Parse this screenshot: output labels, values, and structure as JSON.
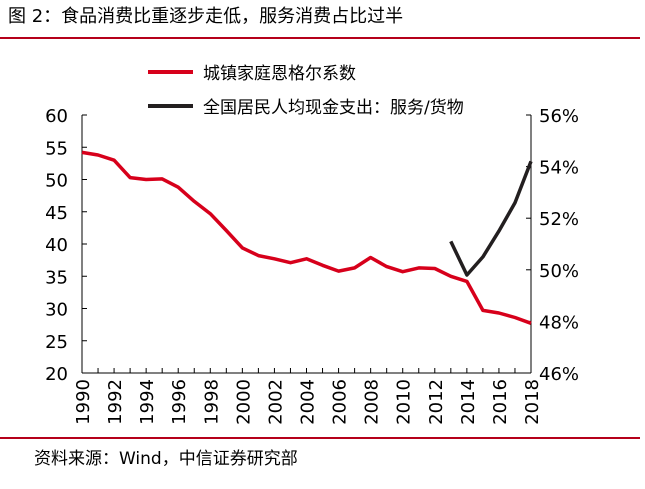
{
  "chart_data": {
    "type": "line",
    "title": "图 2：食品消费比重逐步走低，服务消费占比过半",
    "source": "资料来源：Wind，中信证券研究部",
    "x": [
      1990,
      1991,
      1992,
      1993,
      1994,
      1995,
      1996,
      1997,
      1998,
      1999,
      2000,
      2001,
      2002,
      2003,
      2004,
      2005,
      2006,
      2007,
      2008,
      2009,
      2010,
      2011,
      2012,
      2013,
      2014,
      2015,
      2016,
      2017,
      2018
    ],
    "xtick_labels": [
      "1990",
      "1992",
      "1994",
      "1996",
      "1998",
      "2000",
      "2002",
      "2004",
      "2006",
      "2008",
      "2010",
      "2012",
      "2014",
      "2016",
      "2018"
    ],
    "y_left": {
      "ylim": [
        20,
        60
      ],
      "ticks": [
        "20",
        "25",
        "30",
        "35",
        "40",
        "45",
        "50",
        "55",
        "60"
      ]
    },
    "y_right": {
      "ylim": [
        46,
        56
      ],
      "ticks": [
        "46%",
        "48%",
        "50%",
        "52%",
        "54%",
        "56%"
      ]
    },
    "series": [
      {
        "name": "城镇家庭恩格尔系数",
        "axis": "left",
        "color": "#d7001b",
        "x": [
          1990,
          1991,
          1992,
          1993,
          1994,
          1995,
          1996,
          1997,
          1998,
          1999,
          2000,
          2001,
          2002,
          2003,
          2004,
          2005,
          2006,
          2007,
          2008,
          2009,
          2010,
          2011,
          2012,
          2013,
          2014,
          2015,
          2016,
          2017,
          2018
        ],
        "values": [
          54.2,
          53.8,
          53.0,
          50.3,
          50.0,
          50.1,
          48.8,
          46.6,
          44.7,
          42.1,
          39.4,
          38.2,
          37.7,
          37.1,
          37.7,
          36.7,
          35.8,
          36.3,
          37.9,
          36.5,
          35.7,
          36.3,
          36.2,
          35.0,
          34.2,
          29.7,
          29.3,
          28.6,
          27.7
        ]
      },
      {
        "name": "全国居民人均现金支出：服务/货物",
        "axis": "right",
        "color": "#231f20",
        "x": [
          2013,
          2014,
          2015,
          2016,
          2017,
          2018
        ],
        "values": [
          51.1,
          49.8,
          50.5,
          51.5,
          52.6,
          54.2
        ]
      }
    ]
  }
}
